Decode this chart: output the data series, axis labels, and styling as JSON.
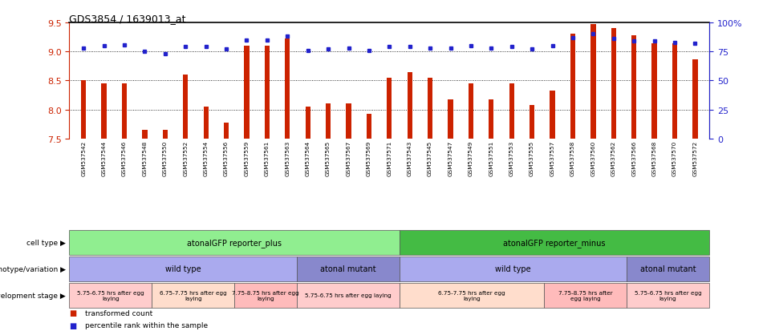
{
  "title": "GDS3854 / 1639013_at",
  "samples": [
    "GSM537542",
    "GSM537544",
    "GSM537546",
    "GSM537548",
    "GSM537550",
    "GSM537552",
    "GSM537554",
    "GSM537556",
    "GSM537559",
    "GSM537561",
    "GSM537563",
    "GSM537564",
    "GSM537565",
    "GSM537567",
    "GSM537569",
    "GSM537571",
    "GSM537543",
    "GSM537545",
    "GSM537547",
    "GSM537549",
    "GSM537551",
    "GSM537553",
    "GSM537555",
    "GSM537557",
    "GSM537558",
    "GSM537560",
    "GSM537562",
    "GSM537566",
    "GSM537568",
    "GSM537570",
    "GSM537572"
  ],
  "bar_values": [
    8.5,
    8.45,
    8.45,
    7.65,
    7.65,
    8.6,
    8.05,
    7.78,
    9.1,
    9.1,
    9.22,
    8.05,
    8.1,
    8.1,
    7.93,
    8.55,
    8.65,
    8.55,
    8.17,
    8.45,
    8.17,
    8.45,
    8.08,
    8.33,
    9.3,
    9.47,
    9.4,
    9.28,
    9.14,
    9.14,
    8.87
  ],
  "percentile_values": [
    78,
    80,
    81,
    75,
    73,
    79,
    79,
    77,
    85,
    85,
    88,
    76,
    77,
    78,
    76,
    79,
    79,
    78,
    78,
    80,
    78,
    79,
    77,
    80,
    87,
    90,
    86,
    84,
    84,
    83,
    82
  ],
  "ymin": 7.5,
  "ymax": 9.5,
  "yticks": [
    7.5,
    8.0,
    8.5,
    9.0,
    9.5
  ],
  "right_yticks": [
    0,
    25,
    50,
    75,
    100
  ],
  "right_ytick_labels": [
    "0",
    "25",
    "50",
    "75",
    "100%"
  ],
  "bar_color": "#cc2200",
  "dot_color": "#2222cc",
  "bg_color": "#ffffff",
  "cell_types": [
    {
      "label": "atonalGFP reporter_plus",
      "start": 0,
      "end": 16,
      "color": "#90ee90"
    },
    {
      "label": "atonalGFP reporter_minus",
      "start": 16,
      "end": 31,
      "color": "#44bb44"
    }
  ],
  "genotypes": [
    {
      "label": "wild type",
      "start": 0,
      "end": 11,
      "color": "#aaaaee"
    },
    {
      "label": "atonal mutant",
      "start": 11,
      "end": 16,
      "color": "#8888cc"
    },
    {
      "label": "wild type",
      "start": 16,
      "end": 27,
      "color": "#aaaaee"
    },
    {
      "label": "atonal mutant",
      "start": 27,
      "end": 31,
      "color": "#8888cc"
    }
  ],
  "dev_stages": [
    {
      "label": "5.75-6.75 hrs after egg\nlaying",
      "start": 0,
      "end": 4,
      "color": "#ffcccc"
    },
    {
      "label": "6.75-7.75 hrs after egg\nlaying",
      "start": 4,
      "end": 8,
      "color": "#ffddcc"
    },
    {
      "label": "7.75-8.75 hrs after egg\nlaying",
      "start": 8,
      "end": 11,
      "color": "#ffbbbb"
    },
    {
      "label": "5.75-6.75 hrs after egg laying",
      "start": 11,
      "end": 16,
      "color": "#ffcccc"
    },
    {
      "label": "6.75-7.75 hrs after egg\nlaying",
      "start": 16,
      "end": 23,
      "color": "#ffddcc"
    },
    {
      "label": "7.75-8.75 hrs after\negg laying",
      "start": 23,
      "end": 27,
      "color": "#ffbbbb"
    },
    {
      "label": "5.75-6.75 hrs after egg\nlaying",
      "start": 27,
      "end": 31,
      "color": "#ffcccc"
    }
  ],
  "row_labels": [
    "cell type",
    "genotype/variation",
    "development stage"
  ],
  "legend_items": [
    {
      "label": "transformed count",
      "color": "#cc2200"
    },
    {
      "label": "percentile rank within the sample",
      "color": "#2222cc"
    }
  ]
}
